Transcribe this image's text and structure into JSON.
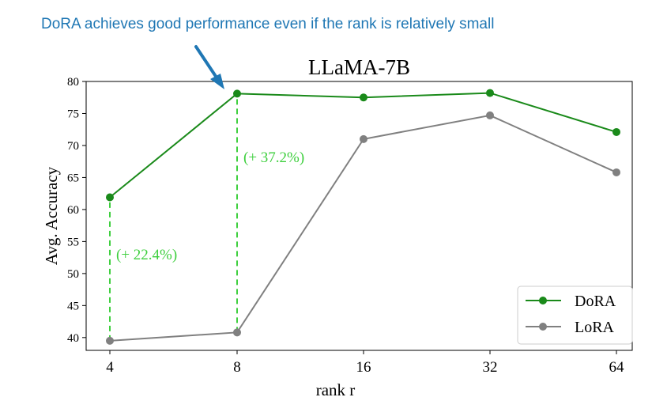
{
  "annotation": {
    "callout_text": "DoRA achieves good performance even if the rank is relatively small",
    "arrow_color": "#1f77b4"
  },
  "chart_data": {
    "type": "line",
    "title": "LLaMA-7B",
    "xlabel": "rank r",
    "ylabel": "Avg. Accuracy",
    "categories": [
      "4",
      "8",
      "16",
      "32",
      "64"
    ],
    "ylim": [
      38,
      80
    ],
    "yticks": [
      40,
      45,
      50,
      55,
      60,
      65,
      70,
      75,
      80
    ],
    "grid": false,
    "legend_position": "bottom-right",
    "series": [
      {
        "name": "DoRA",
        "color": "#1a8a1a",
        "values": [
          61.9,
          78.1,
          77.5,
          78.2,
          72.1
        ]
      },
      {
        "name": "LoRA",
        "color": "#808080",
        "values": [
          39.5,
          40.8,
          71.0,
          74.7,
          65.8
        ]
      }
    ],
    "gap_annotations": [
      {
        "category": "4",
        "from_series": "LoRA",
        "to_series": "DoRA",
        "label": "(+ 22.4%)",
        "color": "#3ecf3e"
      },
      {
        "category": "8",
        "from_series": "LoRA",
        "to_series": "DoRA",
        "label": "(+ 37.2%)",
        "color": "#3ecf3e"
      }
    ]
  }
}
